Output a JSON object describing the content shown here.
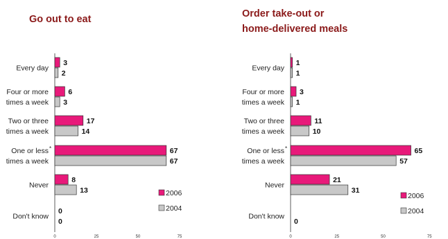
{
  "colors": {
    "s2006": "#E8197A",
    "s2004": "#C8C8C8",
    "stroke": "#333333",
    "title": "#8B1A1A"
  },
  "legend": {
    "s2006": "2006",
    "s2004": "2004"
  },
  "chart_data": [
    {
      "type": "bar",
      "orientation": "horizontal",
      "title_lines": [
        "Go out to eat"
      ],
      "categories": [
        [
          "Every day"
        ],
        [
          "Four or more",
          "times a week"
        ],
        [
          "Two or three",
          "times a week"
        ],
        [
          "One or less",
          "times a week"
        ],
        [
          "Never"
        ],
        [
          "Don't know"
        ]
      ],
      "asterisk_category": 3,
      "series": [
        {
          "name": "2006",
          "values": [
            3,
            6,
            17,
            67,
            8,
            0
          ]
        },
        {
          "name": "2004",
          "values": [
            2,
            3,
            14,
            67,
            13,
            0
          ]
        }
      ],
      "xlim": [
        0,
        75
      ],
      "xticks": [
        0,
        25,
        50,
        75
      ],
      "legend_position": "lower-right",
      "grid": false
    },
    {
      "type": "bar",
      "orientation": "horizontal",
      "title_lines": [
        "Order take-out or",
        "home-delivered meals"
      ],
      "categories": [
        [
          "Every day"
        ],
        [
          "Four or more",
          "times a week"
        ],
        [
          "Two or three",
          "times a week"
        ],
        [
          "One or less",
          "times a week"
        ],
        [
          "Never"
        ],
        [
          "Don't know"
        ]
      ],
      "asterisk_category": 3,
      "series": [
        {
          "name": "2006",
          "values": [
            1,
            3,
            11,
            65,
            21,
            null
          ]
        },
        {
          "name": "2004",
          "values": [
            1,
            1,
            10,
            57,
            31,
            0
          ]
        }
      ],
      "xlim": [
        0,
        75
      ],
      "xticks": [
        0,
        25,
        50,
        75
      ],
      "legend_position": "lower-right",
      "grid": false
    }
  ]
}
